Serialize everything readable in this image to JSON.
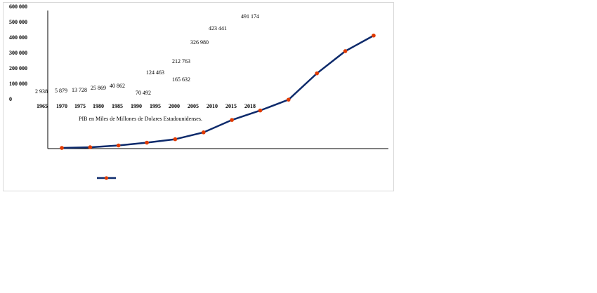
{
  "chart_data": {
    "type": "line",
    "x_label": "PIB en Miles de Millones de Dolares Estadounidenses.",
    "categories": [
      "1965",
      "1970",
      "1975",
      "1980",
      "1985",
      "1990",
      "1995",
      "2000",
      "2005",
      "2010",
      "2015",
      "2018"
    ],
    "values": [
      2938,
      5879,
      13728,
      25869,
      40862,
      70492,
      124463,
      165632,
      212763,
      326980,
      423441,
      491174
    ],
    "value_labels": [
      "2 938",
      "5 879",
      "13 728",
      "25 869",
      "40 862",
      "70 492",
      "124 463",
      "165 632",
      "212 763",
      "326 980",
      "423 441",
      "491 174"
    ],
    "color": "#0d2a6b",
    "marker_color": "#e03a00",
    "ylim": [
      0,
      600000
    ],
    "yticks": [
      {
        "value": 0,
        "label": "0"
      },
      {
        "value": 100000,
        "label": "100 000"
      },
      {
        "value": 200000,
        "label": "200 000"
      },
      {
        "value": 300000,
        "label": "300 000"
      },
      {
        "value": 400000,
        "label": "400 000"
      },
      {
        "value": 500000,
        "label": "500 000"
      },
      {
        "value": 600000,
        "label": "600 000"
      }
    ]
  }
}
